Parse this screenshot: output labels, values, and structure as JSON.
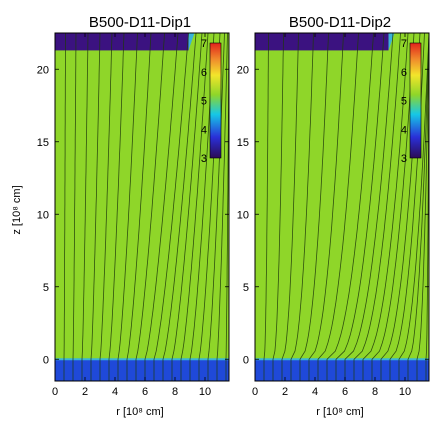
{
  "figure": {
    "panels_title_note": ""
  },
  "chart_data": [
    {
      "type": "heatmap",
      "title": "B500-D11-Dip1",
      "xlabel": "r [10⁸ cm]",
      "ylabel": "z [10⁸ cm]",
      "xlim": [
        0,
        11.6
      ],
      "ylim": [
        -1.5,
        22.5
      ],
      "xticks": [
        "0",
        "2",
        "4",
        "6",
        "8",
        "10"
      ],
      "yticks": [
        "0",
        "5",
        "10",
        "15",
        "20"
      ],
      "colorbar": {
        "ticks": [
          "3",
          "4",
          "5",
          "6",
          "7"
        ],
        "range": [
          3,
          7
        ]
      },
      "regions": [
        {
          "name": "lower-body",
          "z_min": -1.5,
          "z_max": 0.0,
          "value": 3.9
        },
        {
          "name": "upper-cap",
          "z_min": 21.3,
          "z_max": 22.5,
          "r_max": 8.9,
          "value": 3.0
        },
        {
          "name": "background",
          "value": 6.0
        }
      ],
      "field_line_footpoints_r": [
        0.6,
        1.2,
        1.8,
        2.4,
        3.0,
        3.6,
        4.2,
        4.8,
        5.4,
        6.0,
        6.6,
        7.2,
        7.8,
        8.4,
        9.0,
        9.6,
        10.2,
        10.8,
        11.4
      ],
      "field_line_top_r": [
        0.7,
        1.4,
        2.2,
        3.0,
        3.8,
        4.6,
        5.5,
        6.4,
        7.3,
        8.2,
        8.9,
        9.4,
        9.8,
        10.2,
        10.6,
        11.0,
        11.3,
        11.5,
        11.6
      ],
      "field_line_spread": 1.0
    },
    {
      "type": "heatmap",
      "title": "B500-D11-Dip2",
      "xlabel": "r [10⁸ cm]",
      "ylabel": "",
      "xlim": [
        0,
        11.6
      ],
      "ylim": [
        -1.5,
        22.5
      ],
      "xticks": [
        "0",
        "2",
        "4",
        "6",
        "8",
        "10"
      ],
      "yticks": [
        "0",
        "5",
        "10",
        "15",
        "20"
      ],
      "colorbar": {
        "ticks": [
          "3",
          "4",
          "5",
          "6",
          "7"
        ],
        "range": [
          3,
          7
        ]
      },
      "regions": [
        {
          "name": "lower-body",
          "z_min": -1.5,
          "z_max": 0.0,
          "value": 3.9
        },
        {
          "name": "upper-cap",
          "z_min": 21.3,
          "z_max": 22.5,
          "r_max": 8.9,
          "value": 3.0
        },
        {
          "name": "background",
          "value": 6.0
        }
      ],
      "field_line_footpoints_r": [
        0.6,
        1.2,
        1.8,
        2.4,
        3.0,
        3.6,
        4.2,
        4.8,
        5.4,
        6.0,
        6.6,
        7.2,
        7.8,
        8.4,
        9.0,
        9.6,
        10.2,
        10.8,
        11.4
      ],
      "field_line_top_r": [
        0.9,
        1.9,
        2.9,
        3.9,
        4.9,
        5.9,
        6.9,
        7.9,
        8.6,
        9.2,
        9.7,
        10.2,
        10.6,
        11.0,
        11.3,
        11.6,
        11.6,
        11.6,
        11.6
      ],
      "field_line_spread": 1.6
    }
  ],
  "colors": {
    "background": "#8fd629",
    "lower_body": "#1f49d9",
    "upper_cap": "#3b1280",
    "cap_edge": "#3ab4d8",
    "field_line": "#1f3a0a",
    "colorbar_stops": [
      "#2b0b55",
      "#2a2fd8",
      "#16c8e6",
      "#8fd629",
      "#f2e52b",
      "#f08a2c",
      "#e0231b"
    ]
  }
}
